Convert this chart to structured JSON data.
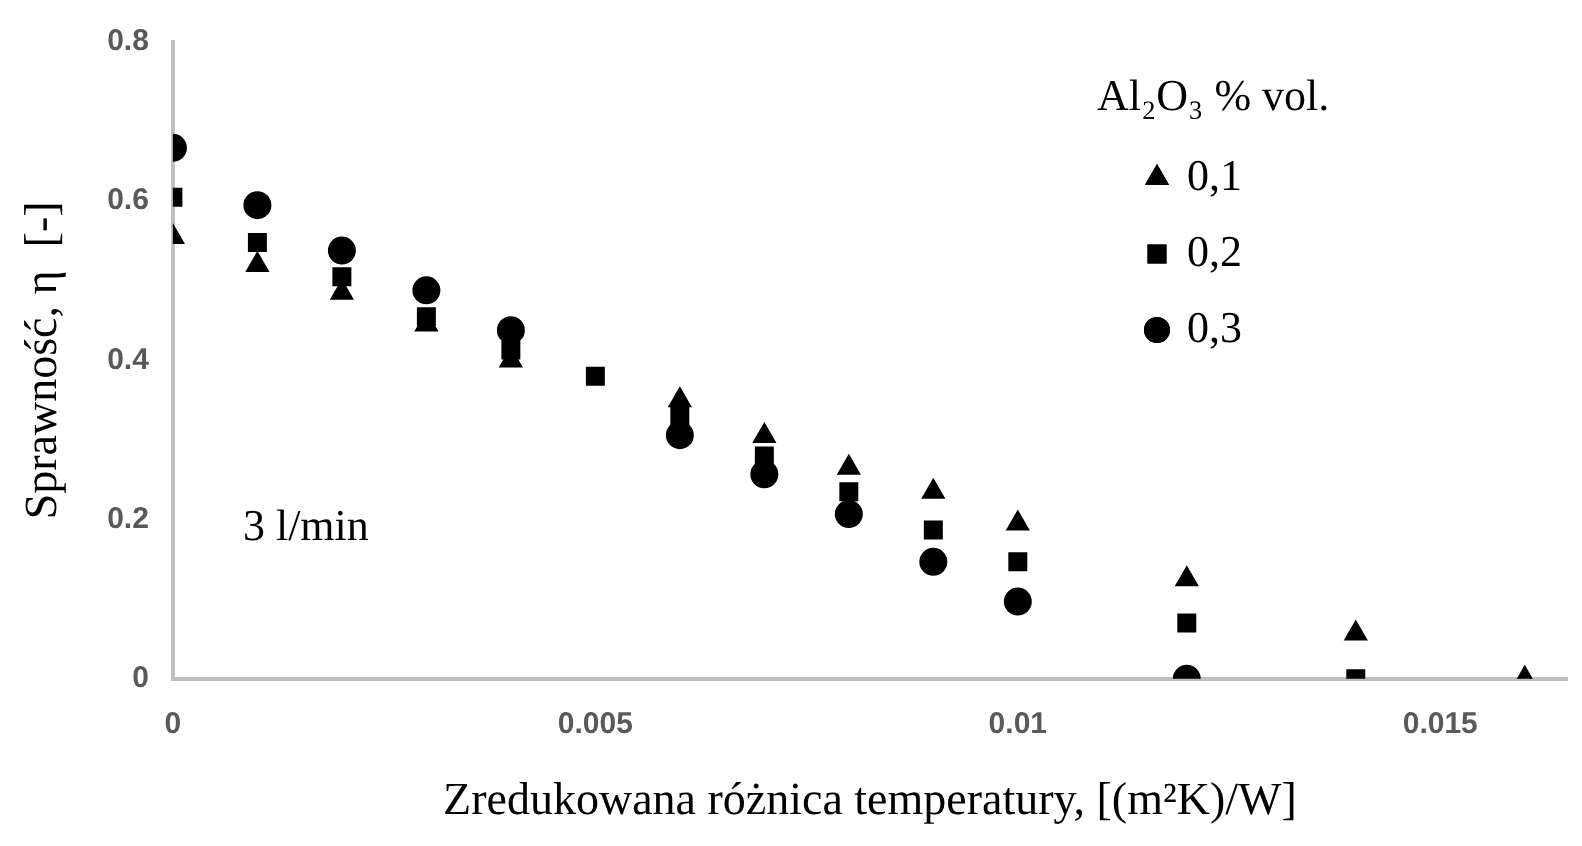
{
  "chart_data": {
    "type": "scatter",
    "xlabel": "Zredukowana różnica temperatury, [(m²K)/W]",
    "ylabel": "Sprawność, η  [-]",
    "legend_title": "Al₂O₃ % vol.",
    "legend": "top right",
    "grid": false,
    "xlim": [
      0,
      0.0165
    ],
    "xticks": [
      0,
      0.005,
      0.01,
      0.015
    ],
    "ylim": [
      0,
      0.8
    ],
    "yticks": [
      0,
      0.2,
      0.4,
      0.6,
      0.8
    ],
    "annotations": [
      "3 l/min"
    ],
    "series": [
      {
        "name": "0,1",
        "color": "#000000",
        "marker": "triangle",
        "x": [
          0,
          0.001,
          0.002,
          0.003,
          0.004,
          0.005,
          0.006,
          0.007,
          0.008,
          0.009,
          0.01,
          0.012,
          0.014,
          0.016
        ],
        "values": [
          0.555,
          0.52,
          0.485,
          0.445,
          0.4,
          null,
          0.35,
          0.305,
          0.265,
          0.235,
          0.195,
          0.125,
          0.057,
          0
        ]
      },
      {
        "name": "0,2",
        "color": "#000000",
        "marker": "square",
        "x": [
          0,
          0.001,
          0.002,
          0.003,
          0.004,
          0.005,
          0.006,
          0.007,
          0.008,
          0.009,
          0.01,
          0.012,
          0.014
        ],
        "values": [
          0.605,
          0.548,
          0.505,
          0.455,
          0.413,
          0.38,
          0.33,
          0.28,
          0.235,
          0.187,
          0.147,
          0.07,
          0
        ]
      },
      {
        "name": "0,3",
        "color": "#000000",
        "marker": "circle",
        "x": [
          0,
          0.001,
          0.002,
          0.003,
          0.004,
          0.005,
          0.006,
          0.007,
          0.008,
          0.009,
          0.01,
          0.012
        ],
        "values": [
          0.667,
          0.595,
          0.538,
          0.488,
          0.438,
          null,
          0.306,
          0.257,
          0.207,
          0.147,
          0.097,
          0
        ]
      }
    ]
  }
}
